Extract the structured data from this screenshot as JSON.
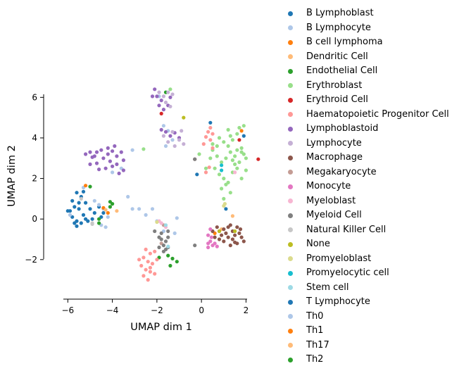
{
  "chart_data": {
    "type": "scatter",
    "title": "",
    "xlabel": "UMAP dim 1",
    "ylabel": "UMAP dim 2",
    "xlim": [
      -6.2,
      2.05
    ],
    "ylim": [
      -3.95,
      6.15
    ],
    "xticks": [
      -6,
      -4,
      -2,
      0,
      2
    ],
    "yticks": [
      -2,
      0,
      2,
      4,
      6
    ],
    "xtick_labels": [
      "−6",
      "−4",
      "−2",
      "0",
      "2"
    ],
    "ytick_labels": [
      "−2",
      "0",
      "2",
      "4",
      "6"
    ],
    "grid": false,
    "legend_position": "outside-right",
    "series": [
      {
        "name": "B Lymphoblast",
        "color": "#1f77b4",
        "points": [
          [
            -5.8,
            0.9
          ],
          [
            -5.6,
            1.3
          ],
          [
            -5.4,
            1.1
          ],
          [
            -5.3,
            1.35
          ],
          [
            -5.7,
            0.6
          ],
          [
            -5.9,
            0.4
          ],
          [
            -5.5,
            0.5
          ],
          [
            -5.2,
            0.8
          ],
          [
            -5.0,
            0.5
          ],
          [
            -5.3,
            0.2
          ],
          [
            -5.6,
            -0.1
          ],
          [
            -5.8,
            0.1
          ],
          [
            -5.4,
            -0.2
          ],
          [
            -5.6,
            -0.35
          ],
          [
            -5.1,
            -0.1
          ],
          [
            -4.8,
            0.3
          ],
          [
            -4.5,
            0.1
          ],
          [
            -4.6,
            0.6
          ],
          [
            -4.4,
            0.3
          ],
          [
            -5.2,
            0.0
          ],
          [
            -4.9,
            0.0
          ],
          [
            -5.5,
            0.8
          ],
          [
            1.1,
            0.5
          ],
          [
            0.4,
            4.75
          ],
          [
            -0.2,
            2.2
          ],
          [
            1.9,
            4.1
          ]
        ]
      },
      {
        "name": "B Lymphocyte",
        "color": "#aec7e8",
        "points": [
          [
            -4.8,
            0.9
          ],
          [
            -4.6,
            0.7
          ],
          [
            -4.4,
            0.5
          ],
          [
            -4.5,
            -0.3
          ],
          [
            -4.3,
            -0.4
          ],
          [
            -4.2,
            0.1
          ],
          [
            -4.0,
            2.3
          ],
          [
            -3.6,
            2.5
          ],
          [
            -3.3,
            1.1
          ],
          [
            -5.3,
            1.55
          ],
          [
            -3.1,
            3.4
          ],
          [
            -2.8,
            0.5
          ],
          [
            -2.5,
            0.2
          ],
          [
            -2.2,
            0.5
          ],
          [
            -2.0,
            -0.1
          ],
          [
            -1.7,
            -0.6
          ],
          [
            -1.2,
            -0.7
          ],
          [
            -1.1,
            0.05
          ],
          [
            -1.9,
            6.05
          ],
          [
            -1.7,
            4.6
          ],
          [
            -1.5,
            4.35
          ],
          [
            -1.3,
            3.9
          ],
          [
            -1.6,
            3.6
          ]
        ]
      },
      {
        "name": "B cell lymphoma",
        "color": "#ff7f0e",
        "points": [
          [
            -5.2,
            1.65
          ],
          [
            -4.2,
            0.3
          ],
          [
            1.8,
            4.35
          ],
          [
            0.6,
            -0.7
          ]
        ]
      },
      {
        "name": "Dendritic Cell",
        "color": "#ffbb78",
        "points": [
          [
            -3.8,
            0.4
          ],
          [
            0.9,
            -0.5
          ],
          [
            1.4,
            0.15
          ]
        ]
      },
      {
        "name": "Endothelial Cell",
        "color": "#2ca02c",
        "points": [
          [
            -5.0,
            1.6
          ],
          [
            -4.6,
            0.0
          ],
          [
            -4.0,
            0.75
          ],
          [
            -4.1,
            0.85
          ],
          [
            -4.6,
            -0.2
          ],
          [
            -1.5,
            -1.8
          ],
          [
            -1.4,
            -2.3
          ],
          [
            -1.1,
            -2.1
          ],
          [
            -1.9,
            -1.9
          ],
          [
            -1.6,
            6.25
          ]
        ]
      },
      {
        "name": "Erythroblast",
        "color": "#98df8a",
        "points": [
          [
            0.8,
            4.0
          ],
          [
            1.0,
            3.8
          ],
          [
            1.2,
            3.6
          ],
          [
            1.4,
            3.9
          ],
          [
            1.6,
            4.2
          ],
          [
            1.8,
            3.5
          ],
          [
            1.9,
            3.2
          ],
          [
            2.0,
            3.0
          ],
          [
            1.7,
            2.8
          ],
          [
            1.5,
            3.1
          ],
          [
            1.3,
            3.3
          ],
          [
            1.1,
            3.0
          ],
          [
            0.9,
            2.8
          ],
          [
            0.7,
            3.1
          ],
          [
            0.5,
            3.4
          ],
          [
            0.4,
            3.0
          ],
          [
            0.6,
            2.5
          ],
          [
            0.8,
            2.2
          ],
          [
            1.0,
            2.0
          ],
          [
            1.2,
            1.8
          ],
          [
            1.4,
            2.3
          ],
          [
            1.6,
            2.5
          ],
          [
            1.8,
            2.0
          ],
          [
            0.9,
            1.5
          ],
          [
            1.0,
            1.0
          ],
          [
            1.1,
            1.7
          ],
          [
            1.3,
            1.3
          ],
          [
            1.5,
            2.7
          ],
          [
            1.7,
            4.5
          ],
          [
            1.9,
            4.6
          ],
          [
            1.2,
            4.4
          ],
          [
            0.5,
            3.7
          ],
          [
            0.2,
            2.5
          ],
          [
            -0.1,
            3.2
          ],
          [
            -2.6,
            3.45
          ],
          [
            -1.4,
            6.4
          ],
          [
            2.0,
            2.4
          ],
          [
            1.8,
            3.3
          ],
          [
            1.6,
            3.4
          ],
          [
            1.4,
            2.9
          ],
          [
            0.7,
            3.6
          ],
          [
            1.3,
            4.1
          ]
        ]
      },
      {
        "name": "Erythroid Cell",
        "color": "#d62728",
        "points": [
          [
            2.55,
            2.95
          ],
          [
            -1.8,
            5.2
          ],
          [
            1.7,
            3.9
          ]
        ]
      },
      {
        "name": "Haematopoietic Progenitor Cell",
        "color": "#ff9896",
        "points": [
          [
            -2.5,
            -1.5
          ],
          [
            -2.3,
            -1.7
          ],
          [
            -2.6,
            -1.9
          ],
          [
            -2.4,
            -2.1
          ],
          [
            -2.2,
            -2.2
          ],
          [
            -2.7,
            -2.3
          ],
          [
            -2.5,
            -2.5
          ],
          [
            -2.3,
            -2.6
          ],
          [
            -2.6,
            -2.8
          ],
          [
            -2.4,
            -3.0
          ],
          [
            -2.1,
            -1.6
          ],
          [
            -2.0,
            -2.0
          ],
          [
            -2.8,
            -2.0
          ],
          [
            -2.3,
            -2.4
          ],
          [
            -2.1,
            -2.7
          ],
          [
            0.4,
            4.5
          ],
          [
            0.5,
            4.2
          ],
          [
            0.3,
            4.3
          ],
          [
            0.4,
            3.9
          ],
          [
            0.2,
            4.05
          ],
          [
            0.5,
            3.5
          ],
          [
            0.1,
            3.7
          ],
          [
            0.2,
            2.3
          ],
          [
            0.35,
            2.55
          ]
        ]
      },
      {
        "name": "Lymphoblastoid",
        "color": "#9467bd",
        "points": [
          [
            -5.2,
            3.2
          ],
          [
            -5.0,
            3.3
          ],
          [
            -4.8,
            3.1
          ],
          [
            -4.7,
            3.3
          ],
          [
            -4.5,
            3.4
          ],
          [
            -4.2,
            3.5
          ],
          [
            -4.0,
            3.35
          ],
          [
            -3.8,
            3.1
          ],
          [
            -3.6,
            3.3
          ],
          [
            -3.5,
            2.9
          ],
          [
            -3.8,
            2.7
          ],
          [
            -4.1,
            2.85
          ],
          [
            -4.4,
            3.0
          ],
          [
            -4.7,
            2.75
          ],
          [
            -3.5,
            2.4
          ],
          [
            -3.7,
            2.25
          ],
          [
            -4.0,
            2.6
          ],
          [
            -4.3,
            2.5
          ],
          [
            -4.6,
            2.45
          ],
          [
            -5.0,
            2.7
          ],
          [
            -3.9,
            3.6
          ],
          [
            -4.2,
            3.2
          ],
          [
            -4.9,
            3.05
          ],
          [
            -2.1,
            6.4
          ],
          [
            -2.0,
            6.05
          ],
          [
            -1.8,
            5.85
          ],
          [
            -1.5,
            5.6
          ],
          [
            -1.4,
            6.0
          ],
          [
            -1.7,
            5.4
          ],
          [
            -1.6,
            4.3
          ],
          [
            -1.4,
            4.1
          ],
          [
            -1.2,
            4.25
          ],
          [
            -1.8,
            4.4
          ],
          [
            -1.0,
            4.0
          ],
          [
            -1.9,
            5.6
          ],
          [
            -2.2,
            6.05
          ]
        ]
      },
      {
        "name": "Lymphocyte",
        "color": "#c5b0d5",
        "points": [
          [
            -1.9,
            6.25
          ],
          [
            -1.7,
            6.05
          ],
          [
            -1.5,
            6.25
          ],
          [
            -1.3,
            6.15
          ],
          [
            -1.6,
            5.75
          ],
          [
            -1.4,
            5.55
          ],
          [
            -1.3,
            4.3
          ],
          [
            -1.5,
            3.8
          ],
          [
            -1.2,
            3.6
          ],
          [
            -1.0,
            3.9
          ],
          [
            -0.8,
            3.7
          ],
          [
            -0.9,
            4.35
          ],
          [
            -1.7,
            4.1
          ]
        ]
      },
      {
        "name": "Macrophage",
        "color": "#8c564b",
        "points": [
          [
            0.5,
            -0.6
          ],
          [
            0.7,
            -0.4
          ],
          [
            0.8,
            -0.6
          ],
          [
            1.0,
            -0.5
          ],
          [
            1.2,
            -0.4
          ],
          [
            1.4,
            -0.6
          ],
          [
            1.5,
            -0.8
          ],
          [
            1.7,
            -0.7
          ],
          [
            1.8,
            -0.9
          ],
          [
            1.9,
            -1.1
          ],
          [
            1.6,
            -1.2
          ],
          [
            1.4,
            -1.0
          ],
          [
            1.2,
            -0.9
          ],
          [
            1.0,
            -1.1
          ],
          [
            0.8,
            -1.0
          ],
          [
            0.6,
            -0.9
          ],
          [
            1.3,
            -0.3
          ],
          [
            1.6,
            -0.4
          ],
          [
            1.1,
            -0.7
          ],
          [
            1.75,
            -0.5
          ],
          [
            0.9,
            -0.8
          ],
          [
            1.5,
            -1.15
          ],
          [
            1.3,
            -1.3
          ],
          [
            -0.3,
            2.95
          ]
        ]
      },
      {
        "name": "Megakaryocyte",
        "color": "#c49c94",
        "points": [
          [
            -1.7,
            -0.3
          ],
          [
            -1.8,
            -1.2
          ]
        ]
      },
      {
        "name": "Monocyte",
        "color": "#e377c2",
        "points": [
          [
            0.4,
            -0.5
          ],
          [
            0.3,
            -0.8
          ],
          [
            0.4,
            -1.1
          ],
          [
            0.3,
            -1.4
          ],
          [
            0.6,
            -1.2
          ],
          [
            0.7,
            -1.35
          ],
          [
            0.5,
            -1.3
          ],
          [
            0.45,
            -0.9
          ],
          [
            0.3,
            -1.2
          ]
        ]
      },
      {
        "name": "Myeloblast",
        "color": "#f7b6d2",
        "points": [
          [
            -1.9,
            -0.1
          ],
          [
            -1.8,
            -0.2
          ],
          [
            -1.6,
            -0.4
          ],
          [
            1.5,
            2.3
          ]
        ]
      },
      {
        "name": "Myeloid Cell",
        "color": "#7f7f7f",
        "points": [
          [
            -2.1,
            -0.6
          ],
          [
            -1.9,
            -0.9
          ],
          [
            -1.8,
            -1.0
          ],
          [
            -1.7,
            -1.3
          ],
          [
            -1.6,
            -1.1
          ],
          [
            -1.5,
            -0.9
          ],
          [
            -1.5,
            -1.4
          ],
          [
            -1.7,
            -1.6
          ],
          [
            -1.9,
            -1.4
          ],
          [
            -1.6,
            -1.5
          ],
          [
            -1.8,
            -0.7
          ],
          [
            -1.5,
            -0.6
          ],
          [
            -0.3,
            -1.3
          ],
          [
            -0.3,
            2.95
          ]
        ]
      },
      {
        "name": "Natural Killer Cell",
        "color": "#c7c7c7",
        "points": [
          [
            -5.4,
            1.0
          ],
          [
            -4.9,
            -0.2
          ],
          [
            -4.9,
            -0.25
          ]
        ]
      },
      {
        "name": "None",
        "color": "#bcbd22",
        "points": [
          [
            -0.8,
            5.0
          ],
          [
            0.8,
            -0.6
          ],
          [
            1.5,
            -0.6
          ]
        ]
      },
      {
        "name": "Promyeloblast",
        "color": "#dbdb8d",
        "points": [
          [
            -2.0,
            -0.15
          ],
          [
            1.0,
            0.65
          ],
          [
            1.05,
            0.75
          ]
        ]
      },
      {
        "name": "Promyelocytic cell",
        "color": "#17becf",
        "points": [
          [
            0.9,
            2.65
          ],
          [
            0.9,
            2.4
          ]
        ]
      },
      {
        "name": "Stem cell",
        "color": "#9edae5",
        "points": [
          [
            -1.6,
            -0.3
          ],
          [
            -1.5,
            -1.35
          ]
        ]
      },
      {
        "name": "T Lymphocyte",
        "color": "#1f77b4",
        "points": [
          [
            -6.0,
            0.4
          ],
          [
            -5.7,
            -0.2
          ]
        ]
      },
      {
        "name": "Th0",
        "color": "#aec7e8",
        "points": [
          [
            -5.9,
            0.2
          ],
          [
            -3.1,
            0.5
          ]
        ]
      },
      {
        "name": "Th1",
        "color": "#ff7f0e",
        "points": [
          [
            -4.4,
            0.55
          ]
        ]
      },
      {
        "name": "Th17",
        "color": "#ffbb78",
        "points": [
          [
            -4.3,
            0.45
          ]
        ]
      },
      {
        "name": "Th2",
        "color": "#2ca02c",
        "points": [
          [
            -4.1,
            0.6
          ],
          [
            -1.3,
            -1.95
          ]
        ]
      }
    ]
  }
}
